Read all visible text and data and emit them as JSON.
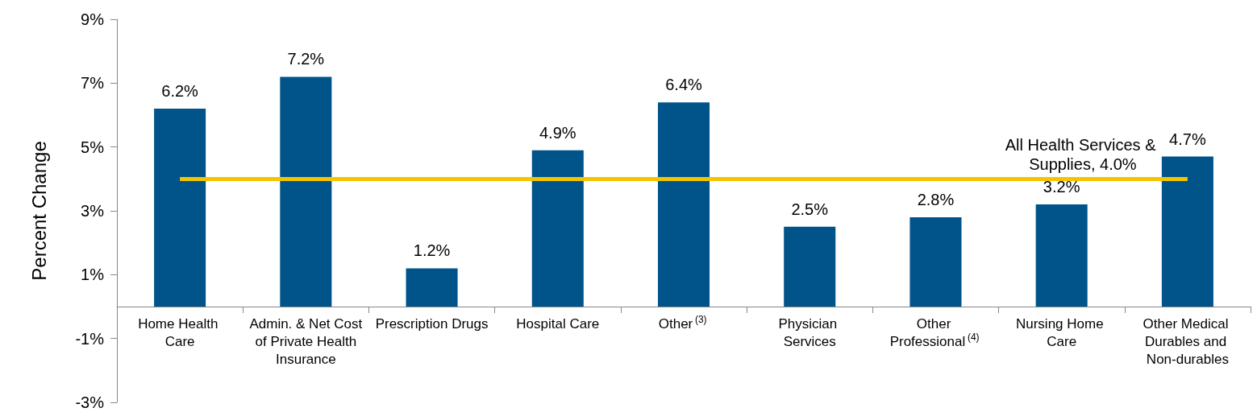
{
  "chart_data": {
    "type": "bar",
    "ylabel": "Percent Change",
    "categories": [
      "Home Health Care",
      "Admin. & Net Cost of Private Health Insurance",
      "Prescription Drugs",
      "Hospital Care",
      "Other$^{(3)}$",
      "Physician Services",
      "Other Professional$^{(4)}$",
      "Nursing Home Care",
      "Other Medical Durables and Non-durables"
    ],
    "values": [
      6.2,
      7.2,
      1.2,
      4.9,
      6.4,
      2.5,
      2.8,
      3.2,
      4.7
    ],
    "value_labels": [
      "6.2%",
      "7.2%",
      "1.2%",
      "4.9%",
      "6.4%",
      "2.5%",
      "2.8%",
      "3.2%",
      "4.7%"
    ],
    "color": "#00548a",
    "ylim": [
      -3,
      9
    ],
    "yticks": [
      {
        "value": -3,
        "label": "-3%"
      },
      {
        "value": -1,
        "label": "-1%"
      },
      {
        "value": 1,
        "label": "1%"
      },
      {
        "value": 3,
        "label": "3%"
      },
      {
        "value": 5,
        "label": "5%"
      },
      {
        "value": 7,
        "label": "7%"
      },
      {
        "value": 9,
        "label": "9%"
      }
    ],
    "ref_lines": [
      {
        "axis": "y",
        "value": 4.0,
        "label": "All Health Services & Supplies, 4.0%",
        "color": "#f5c400"
      }
    ],
    "grid": false
  }
}
